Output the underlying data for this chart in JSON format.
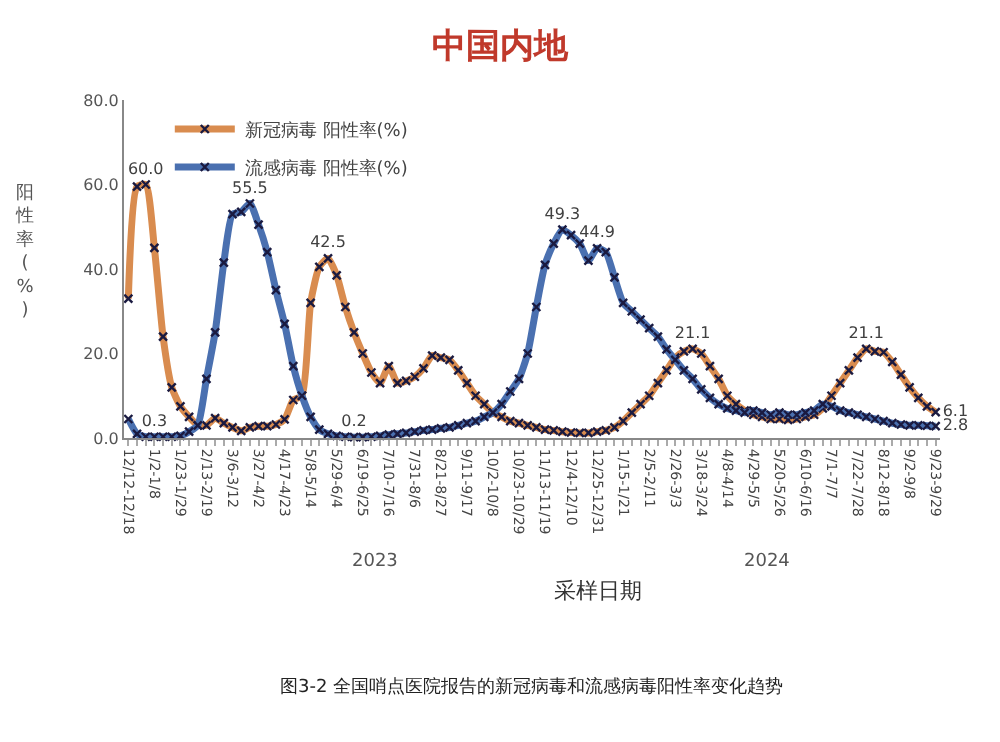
{
  "chart_data": {
    "type": "line",
    "title": "中国内地",
    "xlabel": "采样日期",
    "ylabel": "阳性率(%)",
    "categories": [
      "12/12-12/18",
      null,
      null,
      "1/2-1/8",
      null,
      null,
      "1/23-1/29",
      null,
      null,
      "2/13-2/19",
      null,
      null,
      "3/6-3/12",
      null,
      null,
      "3/27-4/2",
      null,
      null,
      "4/17-4/23",
      null,
      null,
      "5/8-5/14",
      null,
      null,
      "5/29-6/4",
      null,
      null,
      "6/19-6/25",
      null,
      null,
      "7/10-7/16",
      null,
      null,
      "7/31-8/6",
      null,
      null,
      "8/21-8/27",
      null,
      null,
      "9/11-9/17",
      null,
      null,
      "10/2-10/8",
      null,
      null,
      "10/23-10/29",
      null,
      null,
      "11/13-11/19",
      null,
      null,
      "12/4-12/10",
      null,
      null,
      "12/25-12/31",
      null,
      null,
      "1/15-1/21",
      null,
      null,
      "2/5-2/11",
      null,
      null,
      "2/26-3/3",
      null,
      null,
      "3/18-3/24",
      null,
      null,
      "4/8-4/14",
      null,
      null,
      "4/29-5/5",
      null,
      null,
      "5/20-5/26",
      null,
      null,
      "6/10-6/16",
      null,
      null,
      "7/1-7/7",
      null,
      null,
      "7/22-7/28",
      null,
      null,
      "8/12-8/18",
      null,
      null,
      "9/2-9/8",
      null,
      null,
      "9/23-9/29"
    ],
    "series": [
      {
        "name": "新冠病毒 阳性率(%)",
        "color": "#d98c4f",
        "values": [
          33,
          59.5,
          60.0,
          45,
          24,
          12,
          7.5,
          5,
          3,
          3,
          4.7,
          3.5,
          2.5,
          1.7,
          2.5,
          2.8,
          2.8,
          3.2,
          4.4,
          9,
          10,
          32,
          40.5,
          42.5,
          38.5,
          31,
          25,
          20,
          15.5,
          13,
          17,
          13,
          13.5,
          14.5,
          16.5,
          19.5,
          19,
          18.5,
          16,
          13,
          10,
          8,
          6,
          5,
          4,
          3.5,
          3,
          2.5,
          2,
          1.8,
          1.5,
          1.3,
          1.2,
          1.2,
          1.5,
          1.8,
          2.5,
          4,
          6,
          8,
          10,
          13,
          16,
          19,
          20.5,
          21.1,
          20,
          17,
          14,
          10,
          8,
          6.5,
          5.5,
          5,
          4.5,
          4.5,
          4.3,
          4.5,
          5,
          5.5,
          7,
          10,
          13,
          16,
          19,
          21.1,
          20.5,
          20.3,
          18,
          15,
          12,
          9.5,
          7.5,
          6.1
        ],
        "value_labels": [
          null,
          null,
          "60.0",
          null,
          null,
          null,
          null,
          null,
          null,
          null,
          null,
          null,
          null,
          null,
          null,
          null,
          null,
          null,
          null,
          null,
          null,
          null,
          null,
          "42.5",
          null,
          null,
          null,
          null,
          null,
          null,
          null,
          null,
          null,
          null,
          null,
          null,
          null,
          null,
          null,
          null,
          null,
          null,
          null,
          null,
          null,
          null,
          null,
          null,
          null,
          null,
          null,
          null,
          null,
          null,
          null,
          null,
          null,
          null,
          null,
          null,
          null,
          null,
          null,
          null,
          null,
          "21.1",
          null,
          null,
          null,
          null,
          null,
          null,
          null,
          null,
          null,
          null,
          null,
          null,
          null,
          null,
          null,
          null,
          null,
          null,
          null,
          "21.1",
          null,
          null,
          null,
          null,
          null,
          null,
          null,
          "6.1"
        ]
      },
      {
        "name": "流感病毒 阳性率(%)",
        "color": "#4a70b0",
        "values": [
          4.5,
          1,
          0.3,
          0.3,
          0.3,
          0.3,
          0.5,
          1.5,
          3,
          14,
          25,
          41.5,
          53,
          53.5,
          55.5,
          50.5,
          44,
          35,
          27,
          17,
          10,
          5,
          2,
          1,
          0.5,
          0.3,
          0.2,
          0.2,
          0.3,
          0.5,
          0.8,
          1,
          1.2,
          1.5,
          1.8,
          2,
          2.3,
          2.5,
          3,
          3.5,
          4,
          5,
          6,
          8,
          11,
          14,
          20,
          31,
          41,
          46,
          49.3,
          48,
          46,
          42,
          44.9,
          44,
          38,
          32,
          30,
          28,
          26,
          24,
          21,
          18.5,
          16,
          14,
          11.5,
          9.5,
          8,
          7,
          6.5,
          6,
          6.5,
          6,
          5.5,
          6,
          5.5,
          5.5,
          6,
          6.5,
          8,
          7.5,
          6.5,
          6,
          5.5,
          5,
          4.5,
          4,
          3.5,
          3.2,
          3,
          3,
          2.9,
          2.8
        ],
        "value_labels": [
          null,
          null,
          null,
          "0.3",
          null,
          null,
          null,
          null,
          null,
          null,
          null,
          null,
          null,
          null,
          "55.5",
          null,
          null,
          null,
          null,
          null,
          null,
          null,
          null,
          null,
          null,
          null,
          "0.2",
          null,
          null,
          null,
          null,
          null,
          null,
          null,
          null,
          null,
          null,
          null,
          null,
          null,
          null,
          null,
          null,
          null,
          null,
          null,
          null,
          null,
          null,
          null,
          "49.3",
          null,
          null,
          null,
          "44.9",
          null,
          null,
          null,
          null,
          null,
          null,
          null,
          null,
          null,
          null,
          null,
          null,
          null,
          null,
          null,
          null,
          null,
          null,
          null,
          null,
          null,
          null,
          null,
          null,
          null,
          null,
          null,
          null,
          null,
          null,
          null,
          null,
          null,
          null,
          null,
          null,
          null,
          null,
          "2.8"
        ]
      }
    ],
    "ylim": [
      0,
      80
    ],
    "yticks": [
      {
        "value": 0,
        "label": "0.0"
      },
      {
        "value": 20,
        "label": "20.0"
      },
      {
        "value": 40,
        "label": "40.0"
      },
      {
        "value": 60,
        "label": "60.0"
      },
      {
        "value": 80,
        "label": "80.0"
      }
    ],
    "marker": "cross",
    "legend": "top left",
    "annotations": [
      "2023",
      "2024",
      "图3-2 全国哨点医院报告的新冠病毒和流感病毒阳性率变化趋势"
    ]
  }
}
